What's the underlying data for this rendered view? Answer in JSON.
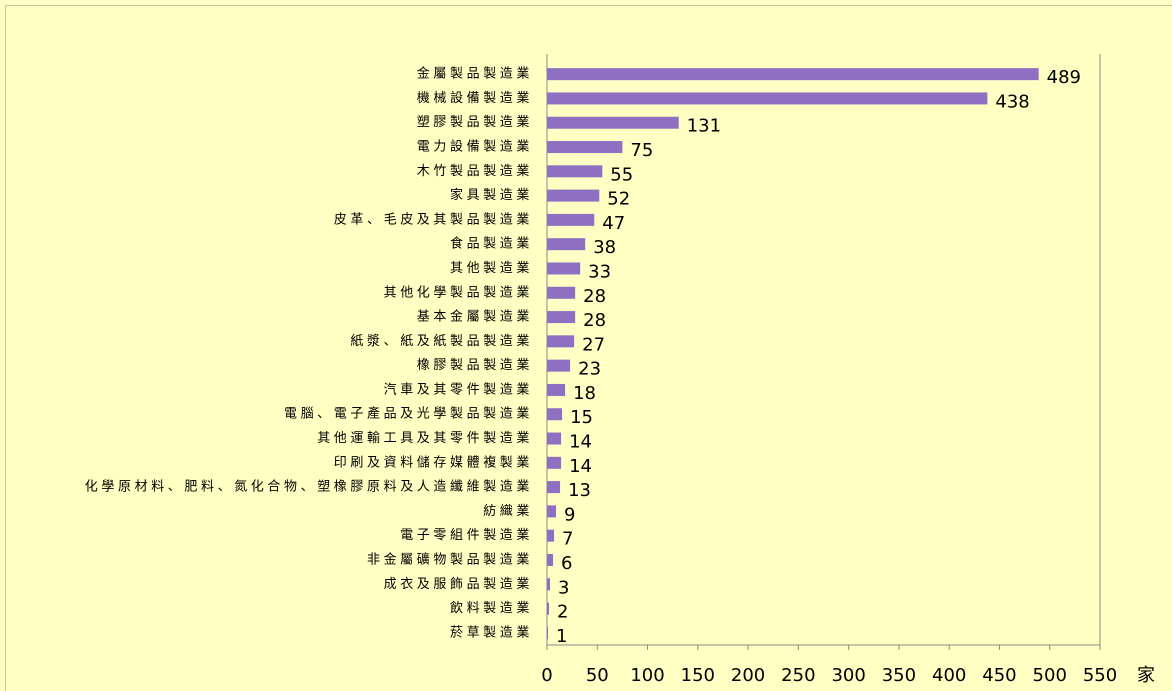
{
  "chart_data": {
    "type": "barh",
    "categories": [
      "金屬製品製造業",
      "機械設備製造業",
      "塑膠製品製造業",
      "電力設備製造業",
      "木竹製品製造業",
      "家具製造業",
      "皮革、毛皮及其製品製造業",
      "食品製造業",
      "其他製造業",
      "其他化學製品製造業",
      "基本金屬製造業",
      "紙漿、紙及紙製品製造業",
      "橡膠製品製造業",
      "汽車及其零件製造業",
      "電腦、電子產品及光學製品製造業",
      "其他運輸工具及其零件製造業",
      "印刷及資料儲存媒體複製業",
      "化學原材料、肥料、氮化合物、塑橡膠原料及人造纖維製造業",
      "紡織業",
      "電子零組件製造業",
      "非金屬礦物製品製造業",
      "成衣及服飾品製造業",
      "飲料製造業",
      "菸草製造業"
    ],
    "values": [
      489,
      438,
      131,
      75,
      55,
      52,
      47,
      38,
      33,
      28,
      28,
      27,
      23,
      18,
      15,
      14,
      14,
      13,
      9,
      7,
      6,
      3,
      2,
      1
    ],
    "color": "#8f6fc2",
    "xlabel": "家",
    "xlim": [
      0,
      550
    ],
    "xticks": [
      0,
      50,
      100,
      150,
      200,
      250,
      300,
      350,
      400,
      450,
      500,
      550
    ],
    "grid": false
  }
}
